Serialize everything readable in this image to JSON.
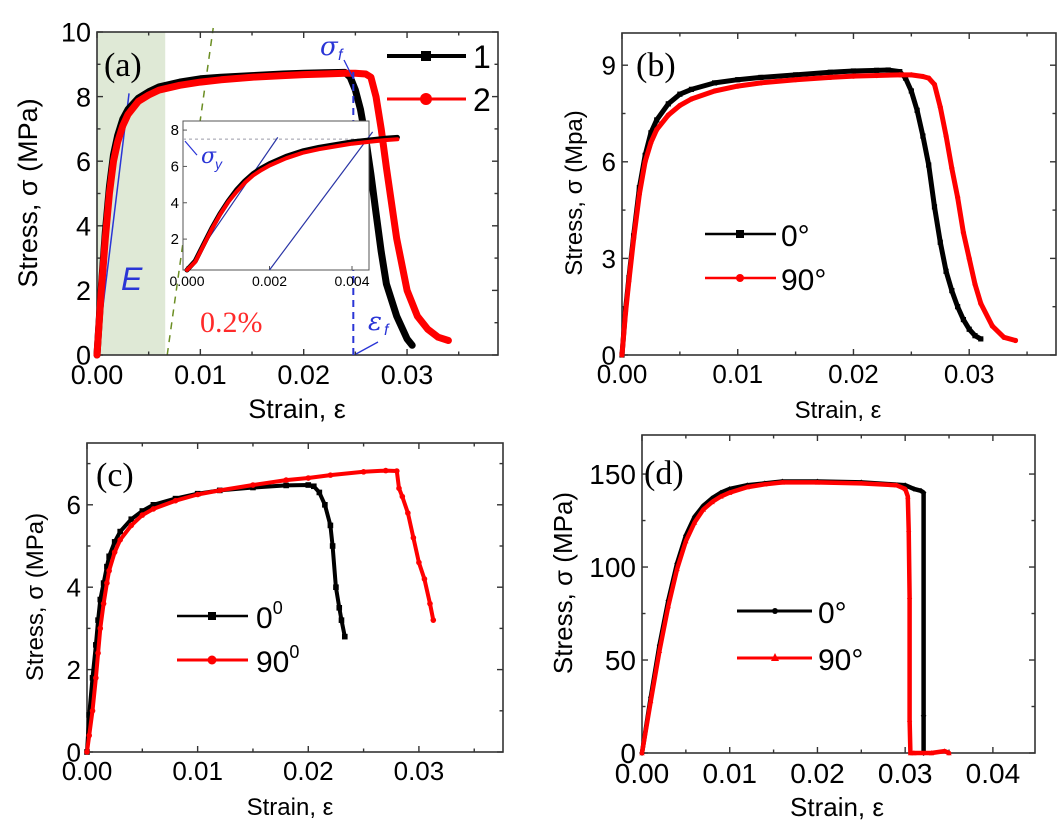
{
  "chart_data": [
    {
      "panel": "a",
      "type": "line",
      "panel_label": "(a)",
      "title": "",
      "xlabel": "Strain, ε",
      "ylabel": "Stress, σ (MPa)",
      "xlim": [
        0,
        0.0388
      ],
      "ylim": [
        0,
        10
      ],
      "xticks": [
        0.0,
        0.01,
        0.02,
        0.03
      ],
      "xtick_labels": [
        "0.00",
        "0.01",
        "0.02",
        "0.03"
      ],
      "xminor": [
        0.005,
        0.015,
        0.025,
        0.035
      ],
      "yticks": [
        0,
        2,
        4,
        6,
        8,
        10
      ],
      "ytick_labels": [
        "0",
        "2",
        "4",
        "6",
        "8",
        "10"
      ],
      "yminor": [
        1,
        3,
        5,
        7,
        9
      ],
      "grid": false,
      "legend": {
        "placement": "top-right",
        "entries": [
          "1",
          "2"
        ]
      },
      "shaded_region": {
        "x": [
          0,
          0.0066
        ],
        "color": "#dfe9d6"
      },
      "offset_line": {
        "label": "0.2%",
        "color": "#6b8e23"
      },
      "annotations": {
        "E": "E",
        "sigma_f": "σ",
        "sigma_f_sub": "f",
        "eps_f": "ε",
        "eps_f_sub": "f",
        "offset": "0.2%",
        "eps_f_strain": 0.0248
      },
      "series": [
        {
          "name": "1",
          "color": "#000000",
          "marker": "square",
          "x": [
            0,
            0.0004,
            0.0008,
            0.0012,
            0.0016,
            0.002,
            0.0025,
            0.003,
            0.004,
            0.005,
            0.006,
            0.008,
            0.01,
            0.012,
            0.015,
            0.018,
            0.02,
            0.022,
            0.024,
            0.0245,
            0.025,
            0.0255,
            0.026,
            0.0265,
            0.027,
            0.0275,
            0.028,
            0.029,
            0.03,
            0.0305
          ],
          "y": [
            0,
            2.0,
            3.8,
            5.2,
            6.2,
            6.8,
            7.3,
            7.6,
            7.95,
            8.15,
            8.3,
            8.45,
            8.55,
            8.6,
            8.65,
            8.7,
            8.72,
            8.74,
            8.75,
            8.6,
            8.2,
            7.6,
            6.7,
            5.6,
            4.4,
            3.2,
            2.2,
            1.2,
            0.5,
            0.3
          ]
        },
        {
          "name": "2",
          "color": "#ff0000",
          "marker": "circle",
          "x": [
            0,
            0.0004,
            0.0008,
            0.0012,
            0.0016,
            0.002,
            0.0025,
            0.003,
            0.004,
            0.005,
            0.006,
            0.008,
            0.01,
            0.012,
            0.015,
            0.018,
            0.02,
            0.022,
            0.024,
            0.025,
            0.026,
            0.0265,
            0.027,
            0.0275,
            0.028,
            0.029,
            0.03,
            0.031,
            0.032,
            0.033,
            0.034
          ],
          "y": [
            0,
            1.9,
            3.6,
            5.0,
            6.0,
            6.6,
            7.1,
            7.45,
            7.85,
            8.05,
            8.2,
            8.35,
            8.45,
            8.52,
            8.6,
            8.65,
            8.68,
            8.7,
            8.72,
            8.72,
            8.7,
            8.6,
            8.0,
            7.0,
            5.8,
            3.6,
            2.0,
            1.2,
            0.8,
            0.55,
            0.45
          ]
        }
      ],
      "inset": {
        "xlim": [
          0,
          0.0051
        ],
        "ylim": [
          0.3,
          8.5
        ],
        "xticks": [
          0.0,
          0.002,
          0.004
        ],
        "xtick_labels": [
          "0.000",
          "0.002",
          "0.004"
        ],
        "yticks": [
          2,
          4,
          6,
          8
        ],
        "ytick_labels": [
          "2",
          "4",
          "6",
          "8"
        ],
        "yield_stress": 7.5,
        "annotation": "σ",
        "annotation_sub": "y",
        "series": [
          {
            "name": "1",
            "color": "#000000",
            "x": [
              0,
              0.0002,
              0.0004,
              0.0006,
              0.0008,
              0.001,
              0.0012,
              0.0014,
              0.0016,
              0.0018,
              0.002,
              0.0024,
              0.0028,
              0.0032,
              0.0036,
              0.004,
              0.0044,
              0.0048,
              0.0051
            ],
            "y": [
              0.3,
              0.8,
              1.7,
              2.6,
              3.4,
              4.1,
              4.7,
              5.2,
              5.6,
              5.9,
              6.15,
              6.55,
              6.85,
              7.05,
              7.2,
              7.35,
              7.45,
              7.55,
              7.6
            ]
          },
          {
            "name": "2",
            "color": "#ff0000",
            "x": [
              0,
              0.0002,
              0.0004,
              0.0006,
              0.0008,
              0.001,
              0.0012,
              0.0014,
              0.0016,
              0.0018,
              0.002,
              0.0024,
              0.0028,
              0.0032,
              0.0036,
              0.004,
              0.0044,
              0.0048,
              0.0051
            ],
            "y": [
              0.3,
              0.75,
              1.65,
              2.55,
              3.35,
              4.05,
              4.6,
              5.1,
              5.5,
              5.8,
              6.05,
              6.45,
              6.75,
              6.95,
              7.1,
              7.25,
              7.35,
              7.45,
              7.5
            ]
          }
        ],
        "elastic_line": {
          "x": [
            0,
            0.0022
          ],
          "y": [
            0.3,
            7.6
          ]
        },
        "offset_line": {
          "x": [
            0.002,
            0.0045
          ],
          "y": [
            0.3,
            7.9
          ]
        }
      }
    },
    {
      "panel": "b",
      "type": "line",
      "panel_label": "(b)",
      "title": "",
      "xlabel": "Strain, ε",
      "ylabel": "Stress, σ (Mpa)",
      "xlim": [
        0,
        0.0375
      ],
      "ylim": [
        0,
        10
      ],
      "xticks": [
        0.0,
        0.01,
        0.02,
        0.03
      ],
      "xtick_labels": [
        "0.00",
        "0.01",
        "0.02",
        "0.03"
      ],
      "xminor": [
        0.005,
        0.015,
        0.025,
        0.035
      ],
      "yticks": [
        0,
        3,
        6,
        9
      ],
      "ytick_labels": [
        "0",
        "3",
        "6",
        "9"
      ],
      "yminor": [
        1.5,
        4.5,
        7.5
      ],
      "grid": false,
      "legend": {
        "placement": "center-left",
        "entries": [
          "0°",
          "90°"
        ]
      },
      "series": [
        {
          "name": "0°",
          "color": "#000000",
          "marker": "square",
          "x": [
            0,
            0.0003,
            0.0006,
            0.001,
            0.0015,
            0.002,
            0.0025,
            0.003,
            0.004,
            0.005,
            0.006,
            0.008,
            0.01,
            0.012,
            0.015,
            0.018,
            0.02,
            0.022,
            0.023,
            0.024,
            0.0245,
            0.025,
            0.0255,
            0.026,
            0.0265,
            0.027,
            0.0275,
            0.028,
            0.0285,
            0.029,
            0.0295,
            0.03,
            0.0305,
            0.031
          ],
          "y": [
            0,
            1.4,
            2.4,
            3.7,
            5.2,
            6.2,
            6.9,
            7.3,
            7.8,
            8.1,
            8.25,
            8.45,
            8.55,
            8.62,
            8.7,
            8.78,
            8.82,
            8.84,
            8.85,
            8.8,
            8.6,
            8.2,
            7.6,
            6.8,
            5.9,
            4.6,
            3.5,
            2.6,
            2.0,
            1.5,
            1.1,
            0.8,
            0.6,
            0.5
          ]
        },
        {
          "name": "90°",
          "color": "#ff0000",
          "marker": "circle",
          "x": [
            0,
            0.0003,
            0.0006,
            0.001,
            0.0015,
            0.002,
            0.0025,
            0.003,
            0.004,
            0.005,
            0.006,
            0.008,
            0.01,
            0.012,
            0.015,
            0.018,
            0.02,
            0.022,
            0.024,
            0.025,
            0.026,
            0.0265,
            0.027,
            0.0275,
            0.028,
            0.0285,
            0.029,
            0.0295,
            0.03,
            0.0305,
            0.031,
            0.032,
            0.033,
            0.034
          ],
          "y": [
            0,
            1.3,
            2.3,
            3.6,
            5.0,
            6.0,
            6.6,
            7.0,
            7.45,
            7.75,
            7.95,
            8.2,
            8.35,
            8.45,
            8.55,
            8.62,
            8.66,
            8.68,
            8.7,
            8.7,
            8.65,
            8.6,
            8.4,
            7.7,
            6.8,
            5.8,
            4.9,
            3.8,
            3.0,
            2.2,
            1.6,
            0.9,
            0.55,
            0.45
          ]
        }
      ]
    },
    {
      "panel": "c",
      "type": "line",
      "panel_label": "(c)",
      "title": "",
      "xlabel": "Strain, ε",
      "ylabel": "Stress, σ (MPa)",
      "xlim": [
        0,
        0.0376
      ],
      "ylim": [
        0,
        7.5
      ],
      "xticks": [
        0.0,
        0.01,
        0.02,
        0.03
      ],
      "xtick_labels": [
        "0.00",
        "0.01",
        "0.02",
        "0.03"
      ],
      "xminor": [
        0.005,
        0.015,
        0.025,
        0.035
      ],
      "yticks": [
        0,
        2,
        4,
        6
      ],
      "ytick_labels": [
        "0",
        "2",
        "4",
        "6"
      ],
      "yminor": [
        1,
        3,
        5,
        7
      ],
      "grid": false,
      "legend": {
        "placement": "center",
        "entries": [
          "0",
          "90"
        ],
        "superscript": "0"
      },
      "series": [
        {
          "name": "0⁰",
          "color": "#000000",
          "marker": "square",
          "x": [
            0,
            0.0002,
            0.0005,
            0.0008,
            0.001,
            0.0012,
            0.0015,
            0.0018,
            0.002,
            0.0025,
            0.003,
            0.004,
            0.005,
            0.006,
            0.008,
            0.01,
            0.012,
            0.015,
            0.018,
            0.02,
            0.0205,
            0.021,
            0.0215,
            0.022,
            0.0222,
            0.0225,
            0.0228,
            0.023,
            0.0233
          ],
          "y": [
            0,
            0.9,
            1.8,
            2.6,
            3.2,
            3.7,
            4.1,
            4.5,
            4.75,
            5.1,
            5.35,
            5.65,
            5.85,
            6.0,
            6.15,
            6.27,
            6.35,
            6.42,
            6.47,
            6.48,
            6.45,
            6.3,
            6.0,
            5.5,
            5.0,
            4.0,
            3.5,
            3.2,
            2.8
          ]
        },
        {
          "name": "90⁰",
          "color": "#ff0000",
          "marker": "circle",
          "x": [
            0,
            0.0002,
            0.0005,
            0.0008,
            0.001,
            0.0012,
            0.0015,
            0.0018,
            0.002,
            0.0025,
            0.003,
            0.004,
            0.005,
            0.006,
            0.008,
            0.01,
            0.012,
            0.015,
            0.018,
            0.02,
            0.022,
            0.025,
            0.027,
            0.028,
            0.0282,
            0.0285,
            0.029,
            0.0295,
            0.03,
            0.0305,
            0.031,
            0.0313
          ],
          "y": [
            0,
            0.4,
            1.0,
            1.8,
            2.4,
            3.0,
            3.6,
            4.1,
            4.4,
            4.85,
            5.15,
            5.5,
            5.75,
            5.9,
            6.1,
            6.25,
            6.35,
            6.48,
            6.6,
            6.65,
            6.72,
            6.8,
            6.83,
            6.82,
            6.4,
            6.2,
            5.8,
            5.2,
            4.6,
            4.2,
            3.6,
            3.2
          ]
        }
      ]
    },
    {
      "panel": "d",
      "type": "line",
      "panel_label": "(d)",
      "title": "",
      "xlabel": "Strain, ε",
      "ylabel": "Stress, σ (MPa)",
      "xlim": [
        0,
        0.0448
      ],
      "ylim": [
        0,
        171
      ],
      "xticks": [
        0.0,
        0.01,
        0.02,
        0.03,
        0.04
      ],
      "xtick_labels": [
        "0.00",
        "0.01",
        "0.02",
        "0.03",
        "0.04"
      ],
      "xminor": [
        0.005,
        0.015,
        0.025,
        0.035
      ],
      "yticks": [
        0,
        50,
        100,
        150
      ],
      "ytick_labels": [
        "0",
        "50",
        "100",
        "150"
      ],
      "yminor": [
        25,
        75,
        125
      ],
      "grid": false,
      "legend": {
        "placement": "center",
        "entries": [
          "0°",
          "90°"
        ]
      },
      "series": [
        {
          "name": "0°",
          "color": "#000000",
          "marker": "diamond",
          "x": [
            0,
            0.001,
            0.002,
            0.003,
            0.004,
            0.005,
            0.006,
            0.007,
            0.008,
            0.009,
            0.01,
            0.012,
            0.014,
            0.016,
            0.02,
            0.025,
            0.03,
            0.031,
            0.0318,
            0.0321,
            0.0321,
            0.0321,
            0.0321
          ],
          "y": [
            0,
            30,
            58,
            82,
            102,
            117,
            127,
            133,
            137,
            140,
            142,
            144,
            145,
            146,
            146,
            145.5,
            144,
            142,
            141,
            140,
            20,
            0,
            0
          ]
        },
        {
          "name": "90°",
          "color": "#ff0000",
          "marker": "triangle",
          "x": [
            0,
            0.001,
            0.002,
            0.003,
            0.004,
            0.005,
            0.006,
            0.007,
            0.008,
            0.009,
            0.01,
            0.012,
            0.014,
            0.016,
            0.02,
            0.025,
            0.029,
            0.03,
            0.0303,
            0.0304,
            0.0305,
            0.0305,
            0.0306,
            0.031,
            0.033,
            0.0345,
            0.035
          ],
          "y": [
            0,
            28,
            55,
            79,
            99,
            114,
            124,
            131,
            135,
            138,
            140,
            143,
            144.5,
            145.5,
            145.5,
            145,
            144,
            142,
            138,
            120,
            84,
            18,
            0,
            0,
            0,
            1,
            0
          ]
        }
      ]
    }
  ]
}
